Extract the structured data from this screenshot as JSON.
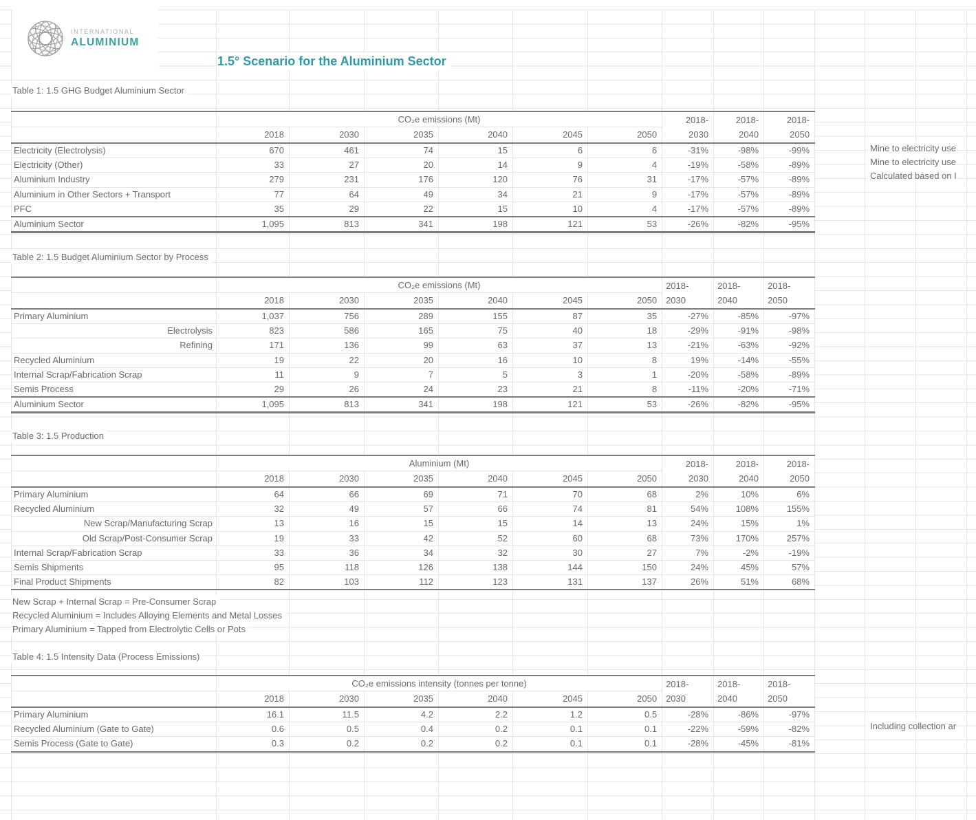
{
  "logo": {
    "line1": "INTERNATIONAL",
    "line2": "ALUMINIUM"
  },
  "page_title": "1.5° Scenario for the Aluminium Sector",
  "colors": {
    "accent_teal": "#3199a8",
    "logo_teal": "#3aa39e",
    "text_gray": "#696969",
    "border_dark": "#7c7c7c",
    "gridline": "#e4e4e4"
  },
  "years": [
    "2018",
    "2030",
    "2035",
    "2040",
    "2045",
    "2050"
  ],
  "delta_headers": [
    [
      "2018-",
      "2030"
    ],
    [
      "2018-",
      "2040"
    ],
    [
      "2018-",
      "2050"
    ]
  ],
  "tables": [
    {
      "title": "Table 1: 1.5 GHG Budget Aluminium Sector",
      "unit": "CO₂e emissions (Mt)",
      "delta_align": "right",
      "rows": [
        {
          "label": "Electricity (Electrolysis)",
          "values": [
            "670",
            "461",
            "74",
            "15",
            "6",
            "6"
          ],
          "deltas": [
            "-31%",
            "-98%",
            "-99%"
          ],
          "note": "Mine to electricity use"
        },
        {
          "label": "Electricity (Other)",
          "values": [
            "33",
            "27",
            "20",
            "14",
            "9",
            "4"
          ],
          "deltas": [
            "-19%",
            "-58%",
            "-89%"
          ],
          "note": "Mine to electricity use"
        },
        {
          "label": "Aluminium Industry",
          "values": [
            "279",
            "231",
            "176",
            "120",
            "76",
            "31"
          ],
          "deltas": [
            "-17%",
            "-57%",
            "-89%"
          ],
          "note": "Calculated based on I"
        },
        {
          "label": "Aluminium in Other Sectors + Transport",
          "values": [
            "77",
            "64",
            "49",
            "34",
            "21",
            "9"
          ],
          "deltas": [
            "-17%",
            "-57%",
            "-89%"
          ]
        },
        {
          "label": "PFC",
          "values": [
            "35",
            "29",
            "22",
            "15",
            "10",
            "4"
          ],
          "deltas": [
            "-17%",
            "-57%",
            "-89%"
          ]
        },
        {
          "label": "Aluminium Sector",
          "total": true,
          "values": [
            "1,095",
            "813",
            "341",
            "198",
            "121",
            "53"
          ],
          "deltas": [
            "-26%",
            "-82%",
            "-95%"
          ]
        }
      ]
    },
    {
      "title": "Table 2: 1.5 Budget Aluminium Sector by Process",
      "unit": "CO₂e emissions (Mt)",
      "delta_align": "left",
      "rows": [
        {
          "label": "Primary Aluminium",
          "values": [
            "1,037",
            "756",
            "289",
            "155",
            "87",
            "35"
          ],
          "deltas": [
            "-27%",
            "-85%",
            "-97%"
          ]
        },
        {
          "label": "Electrolysis",
          "indent": true,
          "values": [
            "823",
            "586",
            "165",
            "75",
            "40",
            "18"
          ],
          "deltas": [
            "-29%",
            "-91%",
            "-98%"
          ]
        },
        {
          "label": "Refining",
          "indent": true,
          "values": [
            "171",
            "136",
            "99",
            "63",
            "37",
            "13"
          ],
          "deltas": [
            "-21%",
            "-63%",
            "-92%"
          ]
        },
        {
          "label": "Recycled Aluminium",
          "values": [
            "19",
            "22",
            "20",
            "16",
            "10",
            "8"
          ],
          "deltas": [
            "19%",
            "-14%",
            "-55%"
          ]
        },
        {
          "label": "Internal Scrap/Fabrication Scrap",
          "values": [
            "11",
            "9",
            "7",
            "5",
            "3",
            "1"
          ],
          "deltas": [
            "-20%",
            "-58%",
            "-89%"
          ]
        },
        {
          "label": "Semis Process",
          "values": [
            "29",
            "26",
            "24",
            "23",
            "21",
            "8"
          ],
          "deltas": [
            "-11%",
            "-20%",
            "-71%"
          ]
        },
        {
          "label": "Aluminium Sector",
          "total": true,
          "values": [
            "1,095",
            "813",
            "341",
            "198",
            "121",
            "53"
          ],
          "deltas": [
            "-26%",
            "-82%",
            "-95%"
          ]
        }
      ]
    },
    {
      "title": "Table 3: 1.5 Production",
      "unit": "Aluminium (Mt)",
      "delta_align": "right",
      "dark_bottom": true,
      "rows": [
        {
          "label": "Primary Aluminium",
          "values": [
            "64",
            "66",
            "69",
            "71",
            "70",
            "68"
          ],
          "deltas": [
            "2%",
            "10%",
            "6%"
          ]
        },
        {
          "label": "Recycled Aluminium",
          "values": [
            "32",
            "49",
            "57",
            "66",
            "74",
            "81"
          ],
          "deltas": [
            "54%",
            "108%",
            "155%"
          ]
        },
        {
          "label": "New Scrap/Manufacturing Scrap",
          "indent": true,
          "values": [
            "13",
            "16",
            "15",
            "15",
            "14",
            "13"
          ],
          "deltas": [
            "24%",
            "15%",
            "1%"
          ]
        },
        {
          "label": "Old Scrap/Post-Consumer Scrap",
          "indent": true,
          "values": [
            "19",
            "33",
            "42",
            "52",
            "60",
            "68"
          ],
          "deltas": [
            "73%",
            "170%",
            "257%"
          ]
        },
        {
          "label": "Internal Scrap/Fabrication Scrap",
          "values": [
            "33",
            "36",
            "34",
            "32",
            "30",
            "27"
          ],
          "deltas": [
            "7%",
            "-2%",
            "-19%"
          ]
        },
        {
          "label": "Semis Shipments",
          "values": [
            "95",
            "118",
            "126",
            "138",
            "144",
            "150"
          ],
          "deltas": [
            "24%",
            "45%",
            "57%"
          ]
        },
        {
          "label": "Final Product Shipments",
          "values": [
            "82",
            "103",
            "112",
            "123",
            "131",
            "137"
          ],
          "deltas": [
            "26%",
            "51%",
            "68%"
          ]
        }
      ]
    },
    {
      "title": "Table 4: 1.5 Intensity Data (Process Emissions)",
      "unit": "CO₂e emissions intensity (tonnes per tonne)",
      "delta_align": "left",
      "dark_bottom": true,
      "rows": [
        {
          "label": "Primary Aluminium",
          "values": [
            "16.1",
            "11.5",
            "4.2",
            "2.2",
            "1.2",
            "0.5"
          ],
          "deltas": [
            "-28%",
            "-86%",
            "-97%"
          ]
        },
        {
          "label": "Recycled Aluminium (Gate to Gate)",
          "values": [
            "0.6",
            "0.5",
            "0.4",
            "0.2",
            "0.1",
            "0.1"
          ],
          "deltas": [
            "-22%",
            "-59%",
            "-82%"
          ],
          "note": "Including collection ar"
        },
        {
          "label": "Semis Process (Gate to Gate)",
          "values": [
            "0.3",
            "0.2",
            "0.2",
            "0.2",
            "0.1",
            "0.1"
          ],
          "deltas": [
            "-28%",
            "-45%",
            "-81%"
          ]
        }
      ]
    }
  ],
  "notes": [
    "New Scrap + Internal Scrap = Pre-Consumer Scrap",
    "Recycled Aluminium = Includes Alloying Elements and Metal Losses",
    "Primary Aluminium = Tapped from Electrolytic Cells or Pots"
  ]
}
